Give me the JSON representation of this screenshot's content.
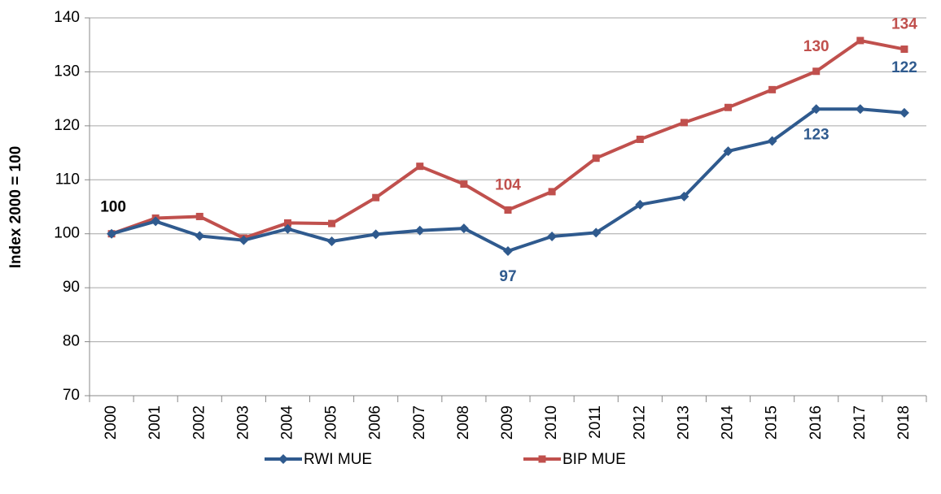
{
  "chart_data": {
    "type": "line",
    "y_axis_label": "Index 2000 = 100",
    "categories": [
      "2000",
      "2001",
      "2002",
      "2003",
      "2004",
      "2005",
      "2006",
      "2007",
      "2008",
      "2009",
      "2010",
      "2011",
      "2012",
      "2013",
      "2014",
      "2015",
      "2016",
      "2017",
      "2018"
    ],
    "series": [
      {
        "name": "RWI MUE",
        "color": "#2f5a8e",
        "marker": "diamond",
        "values": [
          100,
          102.3,
          99.6,
          98.8,
          100.9,
          98.6,
          99.9,
          100.6,
          101.0,
          96.8,
          99.5,
          100.2,
          105.4,
          106.9,
          115.3,
          117.2,
          123.1,
          123.1,
          122.4
        ],
        "value_labels": [
          "100",
          null,
          null,
          null,
          null,
          null,
          null,
          null,
          null,
          "97",
          null,
          null,
          null,
          null,
          null,
          null,
          "123",
          null,
          "122"
        ]
      },
      {
        "name": "BIP MUE",
        "color": "#c0504d",
        "marker": "square",
        "values": [
          100,
          102.9,
          103.2,
          99.2,
          102.0,
          101.9,
          106.7,
          112.5,
          109.2,
          104.4,
          107.8,
          114.0,
          117.5,
          120.6,
          123.4,
          126.7,
          130.1,
          135.8,
          134.2
        ],
        "value_labels": [
          null,
          null,
          null,
          null,
          null,
          null,
          null,
          null,
          null,
          "104",
          null,
          null,
          null,
          null,
          null,
          null,
          "130",
          null,
          "134"
        ]
      }
    ],
    "ylim": [
      70,
      140
    ],
    "yticks": [
      70,
      80,
      90,
      100,
      110,
      120,
      130,
      140
    ],
    "grid": true,
    "legend": "bottom"
  }
}
